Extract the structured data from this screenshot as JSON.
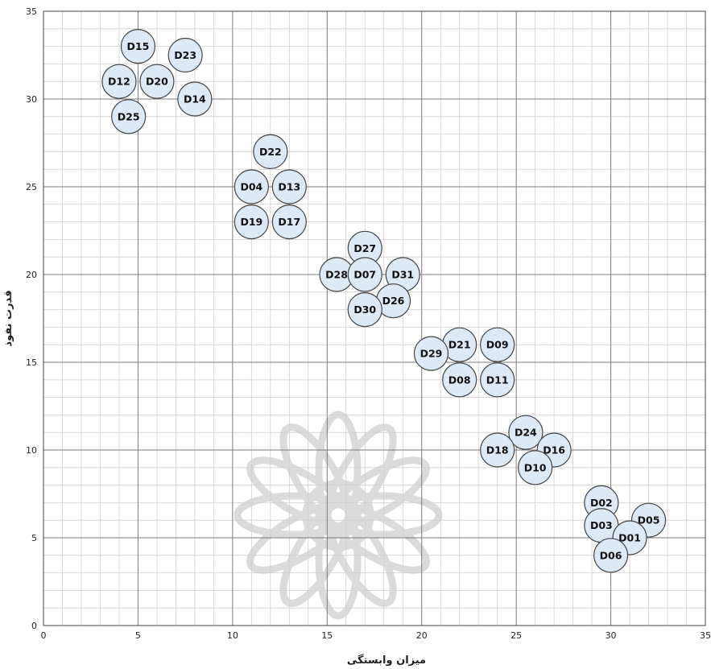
{
  "chart_data": {
    "type": "scatter",
    "title": "",
    "xlabel": "میزان وابستگی",
    "ylabel": "قدرت نفوذ",
    "xlim": [
      0,
      35
    ],
    "ylim": [
      0,
      35
    ],
    "x_ticks": [
      "0",
      "5",
      "10",
      "15",
      "20",
      "25",
      "30",
      "35"
    ],
    "y_ticks": [
      "0",
      "5",
      "10",
      "15",
      "20",
      "25",
      "30",
      "35"
    ],
    "grid": true,
    "minor_grid": true,
    "marker_color": "#dce9f6",
    "marker_edge_color": "#444444",
    "points": [
      {
        "label": "D15",
        "x": 5,
        "y": 33
      },
      {
        "label": "D23",
        "x": 7.5,
        "y": 32.5
      },
      {
        "label": "D12",
        "x": 4,
        "y": 31
      },
      {
        "label": "D20",
        "x": 6,
        "y": 31
      },
      {
        "label": "D14",
        "x": 8,
        "y": 30
      },
      {
        "label": "D25",
        "x": 4.5,
        "y": 29
      },
      {
        "label": "D22",
        "x": 12,
        "y": 27
      },
      {
        "label": "D04",
        "x": 11,
        "y": 25
      },
      {
        "label": "D13",
        "x": 13,
        "y": 25
      },
      {
        "label": "D19",
        "x": 11,
        "y": 23
      },
      {
        "label": "D17",
        "x": 13,
        "y": 23
      },
      {
        "label": "D27",
        "x": 17,
        "y": 21.5
      },
      {
        "label": "D28",
        "x": 15.5,
        "y": 20
      },
      {
        "label": "D07",
        "x": 17,
        "y": 20
      },
      {
        "label": "D31",
        "x": 19,
        "y": 20
      },
      {
        "label": "D26",
        "x": 18.5,
        "y": 18.5
      },
      {
        "label": "D30",
        "x": 17,
        "y": 18
      },
      {
        "label": "D21",
        "x": 22,
        "y": 16
      },
      {
        "label": "D09",
        "x": 24,
        "y": 16
      },
      {
        "label": "D29",
        "x": 20.5,
        "y": 15.5
      },
      {
        "label": "D08",
        "x": 22,
        "y": 14
      },
      {
        "label": "D11",
        "x": 24,
        "y": 14
      },
      {
        "label": "D24",
        "x": 25.5,
        "y": 11
      },
      {
        "label": "D18",
        "x": 24,
        "y": 10
      },
      {
        "label": "D16",
        "x": 27,
        "y": 10
      },
      {
        "label": "D10",
        "x": 26,
        "y": 9
      },
      {
        "label": "D02",
        "x": 29.5,
        "y": 7
      },
      {
        "label": "D05",
        "x": 32,
        "y": 6
      },
      {
        "label": "D03",
        "x": 29.5,
        "y": 5.7
      },
      {
        "label": "D01",
        "x": 31,
        "y": 5
      },
      {
        "label": "D06",
        "x": 30,
        "y": 4
      }
    ]
  }
}
